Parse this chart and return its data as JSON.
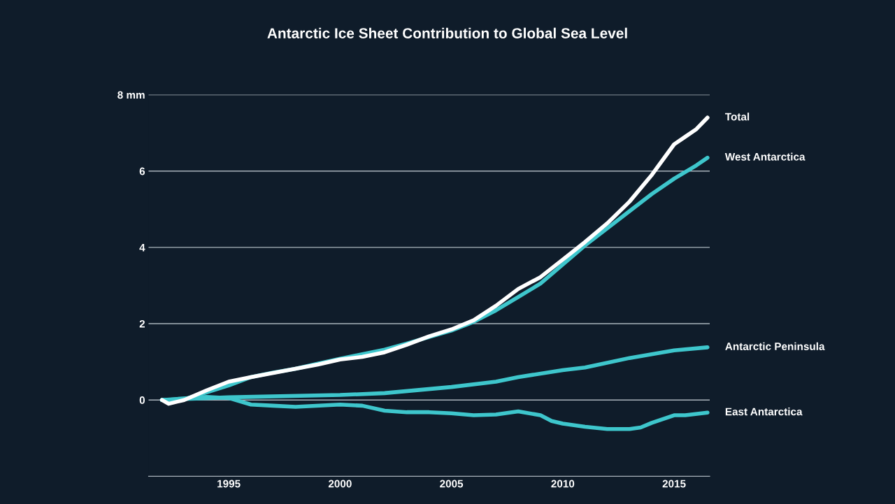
{
  "chart_data": {
    "type": "line",
    "title": "Antarctic Ice Sheet Contribution to Global Sea Level",
    "xlim": [
      1991.4,
      2016.6
    ],
    "xticks": [
      1995,
      2000,
      2005,
      2010,
      2015
    ],
    "ylim": [
      -2,
      8
    ],
    "yticks": [
      0,
      2,
      4,
      6,
      {
        "value": 8,
        "label": "8 mm"
      }
    ],
    "grid": "y",
    "legend": false,
    "marker": "none",
    "line_style": "solid",
    "series": [
      {
        "name": "Total",
        "color": "#ffffff",
        "x": [
          1992,
          1992.3,
          1993,
          1994,
          1995,
          1996,
          1997,
          1998,
          1999,
          2000,
          2001,
          2002,
          2003,
          2004,
          2005,
          2006,
          2007,
          2008,
          2009,
          2010,
          2011,
          2012,
          2013,
          2014,
          2015,
          2015.5,
          2016,
          2016.5
        ],
        "values": [
          0,
          -0.1,
          0,
          0.25,
          0.48,
          0.6,
          0.71,
          0.82,
          0.93,
          1.06,
          1.13,
          1.25,
          1.45,
          1.67,
          1.85,
          2.09,
          2.47,
          2.91,
          3.22,
          3.68,
          4.14,
          4.63,
          5.2,
          5.9,
          6.7,
          6.9,
          7.1,
          7.4
        ]
      },
      {
        "name": "West Antarctica",
        "color": "#3ec6cc",
        "x": [
          1992,
          1993,
          1994,
          1995,
          1996,
          1997,
          1998,
          1999,
          2000,
          2001,
          2002,
          2003,
          2004,
          2005,
          2006,
          2007,
          2008,
          2009,
          2010,
          2011,
          2012,
          2013,
          2014,
          2015,
          2016,
          2016.5
        ],
        "values": [
          0,
          0.02,
          0.2,
          0.38,
          0.6,
          0.72,
          0.82,
          0.95,
          1.08,
          1.2,
          1.32,
          1.48,
          1.65,
          1.82,
          2.05,
          2.35,
          2.7,
          3.05,
          3.55,
          4.05,
          4.5,
          4.95,
          5.4,
          5.8,
          6.15,
          6.35
        ]
      },
      {
        "name": "Antarctic Peninsula",
        "color": "#3ec6cc",
        "x": [
          1992,
          1995,
          2000,
          2002,
          2005,
          2007,
          2008,
          2010,
          2011,
          2013,
          2015,
          2016.5
        ],
        "values": [
          0,
          0.07,
          0.13,
          0.18,
          0.34,
          0.48,
          0.6,
          0.78,
          0.85,
          1.1,
          1.3,
          1.38
        ]
      },
      {
        "name": "East Antarctica",
        "color": "#3ec6cc",
        "x": [
          1992,
          1994,
          1995,
          1996,
          1997,
          1998,
          2000,
          2001,
          2002,
          2003,
          2004,
          2005,
          2006,
          2007,
          2008,
          2009,
          2009.5,
          2010,
          2011,
          2012,
          2013,
          2013.5,
          2014,
          2015,
          2015.5,
          2016.5
        ],
        "values": [
          0,
          0.08,
          0.05,
          -0.12,
          -0.15,
          -0.18,
          -0.12,
          -0.15,
          -0.28,
          -0.32,
          -0.32,
          -0.35,
          -0.4,
          -0.38,
          -0.3,
          -0.4,
          -0.55,
          -0.62,
          -0.7,
          -0.76,
          -0.76,
          -0.72,
          -0.6,
          -0.4,
          -0.4,
          -0.33
        ]
      }
    ]
  }
}
